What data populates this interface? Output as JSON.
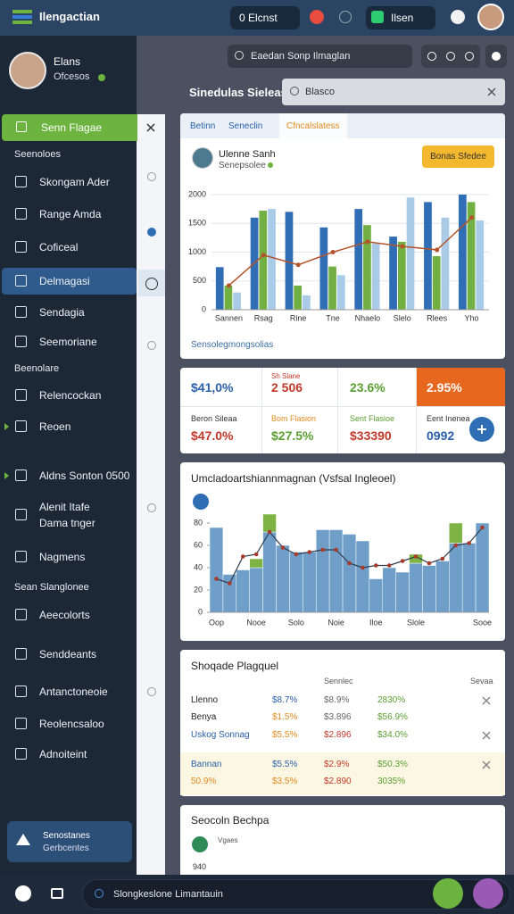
{
  "header": {
    "title": "Ilengactian",
    "pill": "0 Elcnst",
    "user_pill": "Ilsen"
  },
  "sidebar": {
    "profile": {
      "name": "Elans",
      "status": "Ofcesos"
    },
    "primary": "Senn Flagae",
    "groups": [
      {
        "heading": "Seenoloes",
        "items": [
          "Skongam Ader",
          "Range Amda",
          "Coficeal",
          "Delmagasi",
          "Sendagia",
          "Seemoriane"
        ]
      },
      {
        "heading": "Beenolare",
        "items": [
          "Relencockan",
          "Reoen",
          "Aldns Sonton 0500",
          "Alenit Itafe Dama tnger",
          "Nagmens"
        ]
      },
      {
        "heading": "Sean Slanglonee",
        "items": [
          "Aeecolorts",
          "Senddeants",
          "Antanctoneoie",
          "Reolencsaloo",
          "Adnoiteint"
        ]
      }
    ],
    "card": {
      "title": "Senostanes",
      "subtitle": "Gerbcentes"
    }
  },
  "main": {
    "search": "Eaedan Sonp Ilmaglan",
    "heading": "Sinedulas Sieleas",
    "filter": "Blasco"
  },
  "spend_chart": {
    "type": "bar",
    "tabs": [
      "Betinn",
      "Seneclin",
      "Cfncalslatess"
    ],
    "user": "Ulenne Sanh",
    "role": "Senepsolee",
    "button": "Bonas Sfedee",
    "footer": "Sensolegmongsolias",
    "categories": [
      "Sannen",
      "Rsag",
      "Rine",
      "Tne",
      "Nhaelo",
      "Slelo",
      "Rlees",
      "Yho"
    ],
    "ylim": [
      0,
      2000
    ],
    "yticks": [
      0,
      500,
      1000,
      1500,
      2000
    ],
    "grid": true,
    "series": [
      {
        "color": "#2f6db5",
        "values": [
          740,
          1600,
          1700,
          1430,
          1750,
          1270,
          1870,
          2000
        ]
      },
      {
        "color": "#72b043",
        "values": [
          420,
          1720,
          420,
          750,
          1470,
          1180,
          930,
          1870
        ]
      },
      {
        "color": "#a9cbe8",
        "values": [
          300,
          1750,
          250,
          600,
          1150,
          1950,
          1600,
          1550
        ]
      },
      {
        "type": "line",
        "color": "#b5542c",
        "values": [
          420,
          950,
          780,
          1000,
          1180,
          1100,
          1040,
          1600
        ]
      }
    ]
  },
  "kpis": {
    "top": [
      "$41,0%",
      "2 506",
      "23.6%",
      "2.95%"
    ],
    "top_caption": "Sh Slane",
    "bottom": [
      {
        "label": "Beron Sileaa",
        "value": "$47.0%"
      },
      {
        "label": "Bom Flasion",
        "value": "$27.5%"
      },
      {
        "label": "Sent Flasioe",
        "value": "$33390"
      },
      {
        "label": "Eent Inenea",
        "value": "0992"
      }
    ]
  },
  "trend_chart": {
    "type": "bar",
    "title": "Umcladoartshiannmagnan (Vsfsal Ingleoel)",
    "stacked": true,
    "categories": [
      "Oop",
      null,
      null,
      "Nooe",
      null,
      null,
      "Solo",
      null,
      null,
      "Noie",
      null,
      null,
      "Iloe",
      null,
      null,
      "Slole",
      null,
      null,
      null,
      null,
      "Sooe"
    ],
    "ylim": [
      0,
      80
    ],
    "yticks": [
      0,
      20,
      40,
      60,
      80
    ],
    "series": [
      {
        "color": "#6f9fc9",
        "values": [
          76,
          34,
          38,
          40,
          72,
          60,
          54,
          54,
          74,
          74,
          70,
          64,
          30,
          40,
          36,
          44,
          42,
          46,
          62,
          62,
          80
        ]
      },
      {
        "color": "#7cb342",
        "values": [
          null,
          null,
          null,
          8,
          16,
          null,
          null,
          null,
          null,
          null,
          null,
          null,
          null,
          null,
          null,
          8,
          null,
          null,
          18,
          null,
          null
        ]
      },
      {
        "type": "line",
        "color": "#a83a2a",
        "values": [
          30,
          26,
          50,
          52,
          72,
          58,
          52,
          54,
          56,
          56,
          44,
          40,
          42,
          42,
          46,
          50,
          44,
          48,
          60,
          62,
          76
        ]
      }
    ]
  },
  "table": {
    "title": "Shoqade Plagquel",
    "columns": [
      "Sennlec",
      "Sevaa"
    ],
    "rows": [
      [
        "Llenno",
        "$8.7%",
        "$8.9%",
        "2830%"
      ],
      [
        "Benya",
        "$1.5%",
        "$3.896",
        "$56.9%"
      ],
      [
        "Uskog Sonnag",
        "$5.5%",
        "$2.896",
        "$34.0%"
      ],
      [
        "Bannan",
        "$5.5%",
        "$2.9%",
        "$50.3%"
      ],
      [
        "50.9%",
        "$3.5%",
        "$2.890",
        "3035%"
      ]
    ]
  },
  "bottom_card": {
    "title": "Seocoln Bechpa",
    "subtitle": "Vgaes",
    "tick": "940"
  },
  "footer": {
    "search": "Slongkeslone Limantauin"
  }
}
